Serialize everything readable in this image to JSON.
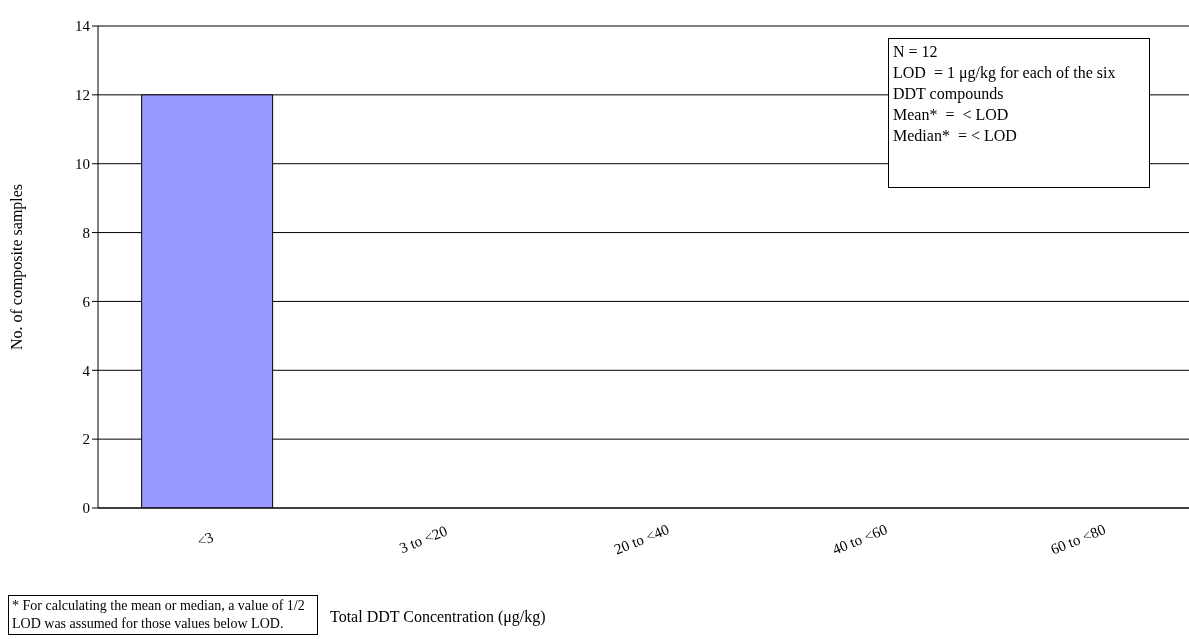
{
  "chart_data": {
    "type": "bar",
    "xlabel": "Total DDT Concentration (μg/kg)",
    "ylabel": "No. of composite samples",
    "categories": [
      "<3",
      "3 to <20",
      "20 to <40",
      "40 to <60",
      "60 to <80"
    ],
    "values": [
      12,
      0,
      0,
      0,
      0
    ],
    "color": "#9999ff",
    "ylim": [
      0,
      14
    ],
    "yticks": [
      0,
      2,
      4,
      6,
      8,
      10,
      12,
      14
    ],
    "grid": "y",
    "annotations": [
      "N = 12\nLOD  = 1 μg/kg for each of the six DDT compounds\nMean*  =  < LOD\nMedian*  = < LOD",
      "* For calculating the mean or median, a value of 1/2 LOD was assumed for those values below LOD."
    ]
  }
}
